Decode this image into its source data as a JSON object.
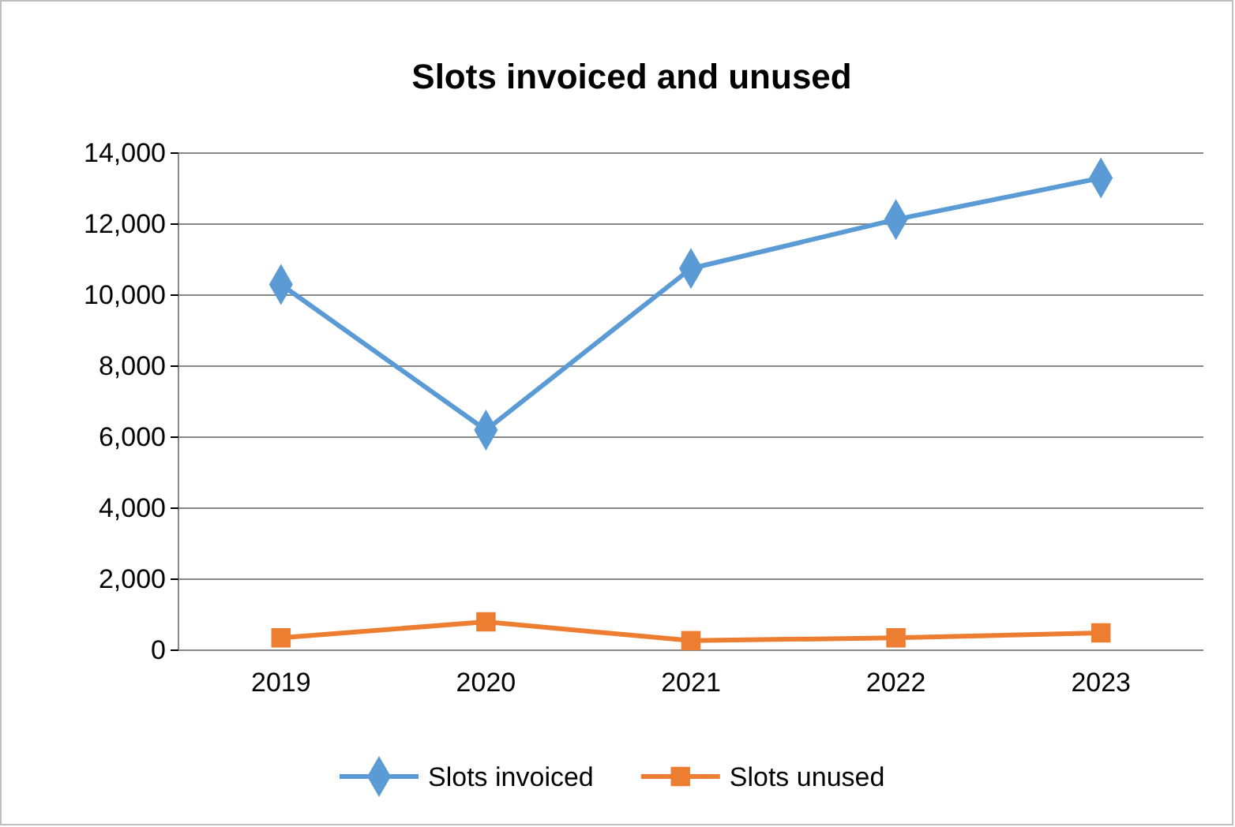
{
  "chart_data": {
    "type": "line",
    "title": "Slots invoiced and unused",
    "categories": [
      "2019",
      "2020",
      "2021",
      "2022",
      "2023"
    ],
    "series": [
      {
        "name": "Slots invoiced",
        "color": "#5b9bd5",
        "marker": "diamond",
        "values": [
          10300,
          6200,
          10750,
          12130,
          13300
        ]
      },
      {
        "name": "Slots unused",
        "color": "#ed7d31",
        "marker": "square",
        "values": [
          350,
          800,
          270,
          350,
          490
        ]
      }
    ],
    "ylim": [
      0,
      14000
    ],
    "yticks": [
      {
        "value": 0,
        "label": "0"
      },
      {
        "value": 2000,
        "label": "2,000"
      },
      {
        "value": 4000,
        "label": "4,000"
      },
      {
        "value": 6000,
        "label": "6,000"
      },
      {
        "value": 8000,
        "label": "8,000"
      },
      {
        "value": 10000,
        "label": "10,000"
      },
      {
        "value": 12000,
        "label": "12,000"
      },
      {
        "value": 14000,
        "label": "14,000"
      }
    ],
    "grid": "y",
    "legend": "bottom"
  }
}
